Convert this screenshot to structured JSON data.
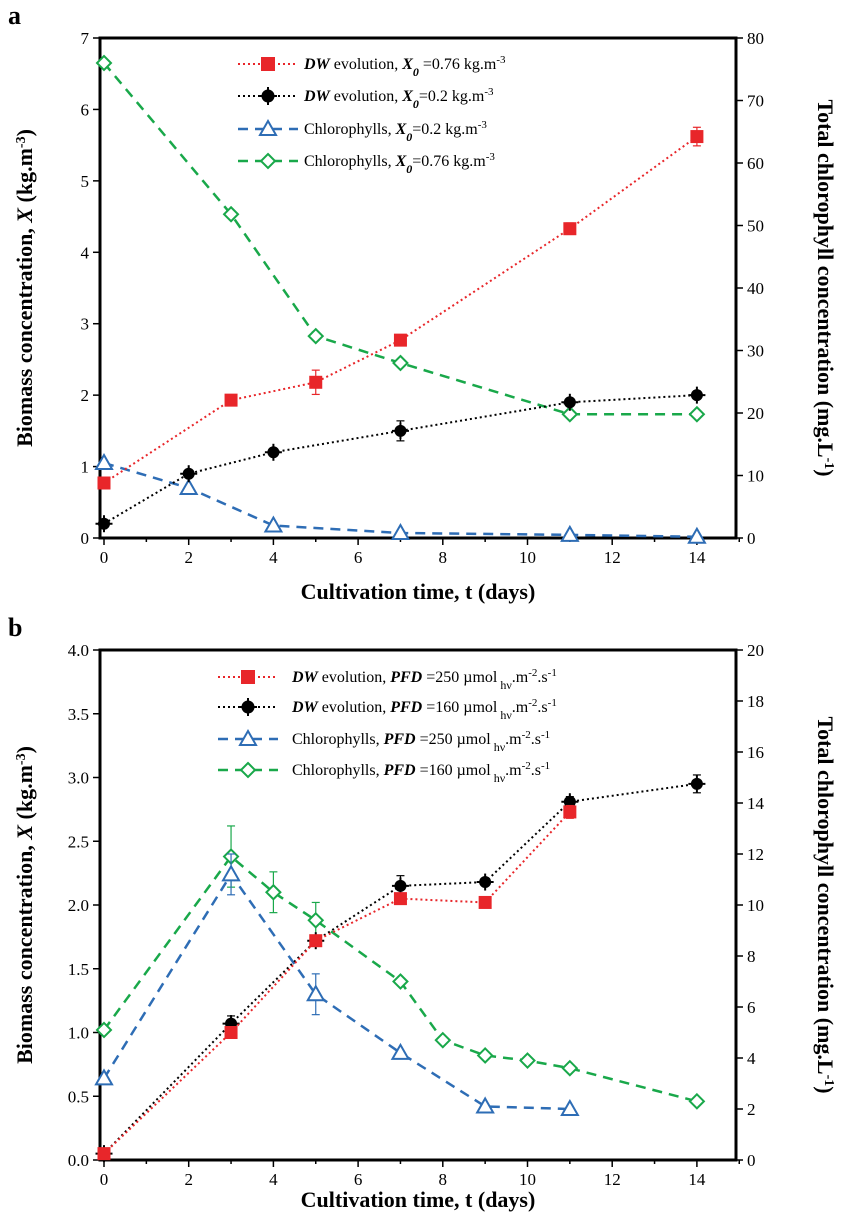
{
  "panels": [
    {
      "letter": "a",
      "xlabel": "Cultivation time, t (days)",
      "ylabel_left": "Biomass concentration, X (kg.m-3)",
      "ylabel_right": "Total chlorophyll concentration (mg.L-1)",
      "xlim": [
        0,
        15
      ],
      "ylim_left": [
        0,
        7
      ],
      "ylim_right": [
        0,
        80
      ],
      "xticks": [
        "0",
        "2",
        "4",
        "6",
        "8",
        "10",
        "12",
        "14"
      ],
      "yticks_left": [
        "0",
        "1",
        "2",
        "3",
        "4",
        "5",
        "6",
        "7"
      ],
      "yticks_right": [
        "0",
        "10",
        "20",
        "30",
        "40",
        "50",
        "60",
        "70",
        "80"
      ],
      "legend": [
        "DW evolution, X0 =0.76 kg.m-3",
        "DW evolution, X0=0.2 kg.m-3",
        "Chlorophylls, X0=0.2 kg.m-3",
        "Chlorophylls, X0=0.76 kg.m-3"
      ]
    },
    {
      "letter": "b",
      "xlabel": "Cultivation time, t (days)",
      "ylabel_left": "Biomass concentration, X (kg.m-3)",
      "ylabel_right": "Total chlorophyll concentration (mg.L-1)",
      "xlim": [
        0,
        15
      ],
      "ylim_left": [
        0,
        4
      ],
      "ylim_right": [
        0,
        20
      ],
      "xticks": [
        "0",
        "2",
        "4",
        "6",
        "8",
        "10",
        "12",
        "14"
      ],
      "yticks_left": [
        "0.0",
        "0.5",
        "1.0",
        "1.5",
        "2.0",
        "2.5",
        "3.0",
        "3.5",
        "4.0"
      ],
      "yticks_right": [
        "0",
        "2",
        "4",
        "6",
        "8",
        "10",
        "12",
        "14",
        "16",
        "18",
        "20"
      ],
      "legend": [
        "DW evolution, PFD =250 µmol hν.m-2.s-1",
        "DW evolution, PFD =160 µmol hν.m-2.s-1",
        "Chlorophylls, PFD =250 µmol hν.m-2.s-1",
        "Chlorophylls, PFD =160 µmol hν.m-2.s-1"
      ]
    }
  ],
  "colors": {
    "red": "#e8262a",
    "black": "#000000",
    "blue": "#2e6db5",
    "green": "#19a84a"
  },
  "chart_data": [
    {
      "type": "line",
      "xlabel": "Cultivation time, t (days)",
      "ylabel": "Biomass concentration, X (kg.m-3)",
      "y2label": "Total chlorophyll concentration (mg.L-1)",
      "xlim": [
        0,
        15
      ],
      "ylim": [
        0,
        7
      ],
      "y2lim": [
        0,
        80
      ],
      "grid": false,
      "legend_position": "top",
      "series": [
        {
          "name": "DW evolution, X0 =0.76 kg.m-3",
          "axis": "left",
          "color": "#e8262a",
          "marker": "square",
          "style": "dotted",
          "x": [
            0,
            3,
            5,
            7,
            11,
            14
          ],
          "y": [
            0.77,
            1.93,
            2.18,
            2.77,
            4.33,
            5.62
          ],
          "err": [
            0.05,
            0.05,
            0.17,
            0.05,
            0.08,
            0.13
          ]
        },
        {
          "name": "DW evolution, X0=0.2 kg.m-3",
          "axis": "left",
          "color": "#000000",
          "marker": "plus-circle",
          "style": "dotted",
          "x": [
            0,
            2,
            4,
            7,
            11,
            14
          ],
          "y": [
            0.2,
            0.9,
            1.2,
            1.5,
            1.9,
            2.0
          ],
          "err": [
            0.03,
            0.04,
            0.04,
            0.14,
            0.05,
            0.04
          ]
        },
        {
          "name": "Chlorophylls, X0=0.2 kg.m-3",
          "axis": "right",
          "color": "#2e6db5",
          "marker": "triangle",
          "style": "dashed",
          "x": [
            0,
            2,
            4,
            7,
            11,
            14
          ],
          "y": [
            12,
            8,
            2,
            0.8,
            0.5,
            0.2
          ],
          "err": [
            0,
            0,
            0,
            0,
            0,
            0
          ]
        },
        {
          "name": "Chlorophylls, X0=0.76 kg.m-3",
          "axis": "right",
          "color": "#19a84a",
          "marker": "diamond",
          "style": "dashed",
          "x": [
            0,
            3,
            5,
            7,
            11,
            14
          ],
          "y": [
            76,
            51.8,
            32.3,
            28,
            19.8,
            19.8
          ],
          "err": [
            0,
            0,
            0,
            0,
            0,
            0
          ]
        }
      ]
    },
    {
      "type": "line",
      "xlabel": "Cultivation time, t (days)",
      "ylabel": "Biomass concentration, X (kg.m-3)",
      "y2label": "Total chlorophyll concentration (mg.L-1)",
      "xlim": [
        0,
        15
      ],
      "ylim": [
        0,
        4
      ],
      "y2lim": [
        0,
        20
      ],
      "grid": false,
      "legend_position": "top",
      "series": [
        {
          "name": "DW evolution, PFD =250 µmol hν.m-2.s-1",
          "axis": "left",
          "color": "#e8262a",
          "marker": "square",
          "style": "dotted",
          "x": [
            0,
            3,
            5,
            7,
            9,
            11
          ],
          "y": [
            0.05,
            1.0,
            1.72,
            2.05,
            2.02,
            2.73
          ],
          "err": [
            0.02,
            0.03,
            0.03,
            0.03,
            0.03,
            0.05
          ]
        },
        {
          "name": "DW evolution, PFD =160 µmol hν.m-2.s-1",
          "axis": "left",
          "color": "#000000",
          "marker": "plus-circle",
          "style": "dotted",
          "x": [
            0,
            3,
            5,
            7,
            9,
            11,
            14
          ],
          "y": [
            0.05,
            1.07,
            1.72,
            2.15,
            2.18,
            2.81,
            2.95
          ],
          "err": [
            0.02,
            0.06,
            0.04,
            0.08,
            0.03,
            0.04,
            0.07
          ]
        },
        {
          "name": "Chlorophylls, PFD =250 µmol hν.m-2.s-1",
          "axis": "right",
          "color": "#2e6db5",
          "marker": "triangle",
          "style": "dashed",
          "x": [
            0,
            3,
            5,
            7,
            9,
            11
          ],
          "y": [
            3.2,
            11.2,
            6.5,
            4.2,
            2.1,
            2.0
          ],
          "err": [
            0,
            0.8,
            0.8,
            0,
            0,
            0
          ]
        },
        {
          "name": "Chlorophylls, PFD =160 µmol hν.m-2.s-1",
          "axis": "right",
          "color": "#19a84a",
          "marker": "diamond",
          "style": "dashed",
          "x": [
            0,
            3,
            4,
            5,
            7,
            8,
            9,
            10,
            11,
            14
          ],
          "y": [
            5.1,
            11.9,
            10.5,
            9.4,
            7.0,
            4.7,
            4.1,
            3.9,
            3.6,
            2.3
          ],
          "err": [
            0,
            1.2,
            0.8,
            0.7,
            0,
            0,
            0,
            0,
            0,
            0
          ]
        }
      ]
    }
  ]
}
